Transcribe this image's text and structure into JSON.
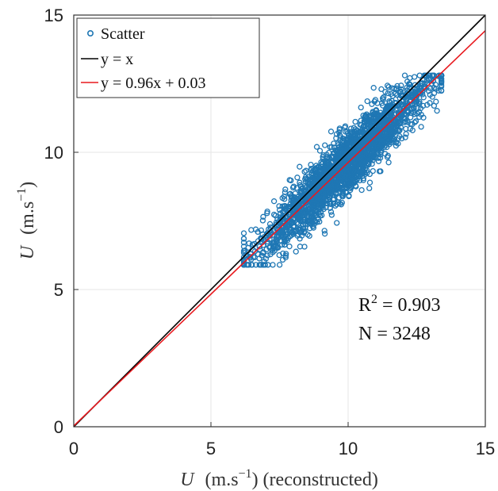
{
  "chart_data": {
    "type": "scatter",
    "title": "",
    "xlabel_symbol": "U",
    "xlabel_unit": "(m.s",
    "xlabel_exp": "−1",
    "xlabel_suffix": ") (reconstructed)",
    "ylabel_symbol": "U",
    "ylabel_unit": "(m.s",
    "ylabel_exp": "−1",
    "ylabel_suffix": ")",
    "xlim": [
      0,
      15
    ],
    "ylim": [
      0,
      15
    ],
    "xticks": [
      0,
      5,
      10,
      15
    ],
    "yticks": [
      0,
      5,
      10,
      15
    ],
    "grid": true,
    "legend_position": "top-left",
    "series": [
      {
        "name": "Scatter",
        "kind": "markers",
        "color": "#1f77b4",
        "cluster": {
          "count": 3248,
          "x_range": [
            6.2,
            13.4
          ],
          "center_slope": 0.96,
          "center_intercept": 0.03
        }
      },
      {
        "name": "y = x",
        "kind": "line",
        "color": "#000000",
        "slope": 1.0,
        "intercept": 0.0
      },
      {
        "name": "y = 0.96x + 0.03",
        "kind": "line",
        "color": "#e8191e",
        "slope": 0.96,
        "intercept": 0.03
      }
    ],
    "annotations": {
      "r2_label": "R",
      "r2_exp": "2",
      "r2_value": " = 0.903",
      "n_text": "N = 3248"
    }
  }
}
